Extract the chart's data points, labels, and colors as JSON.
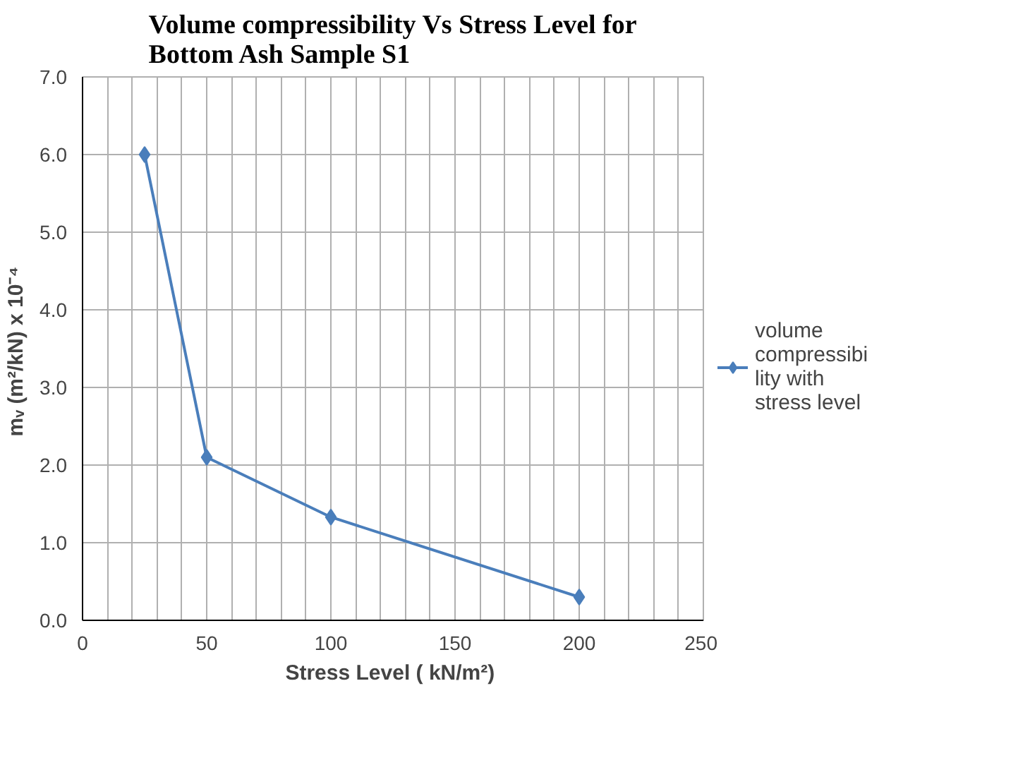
{
  "chart_data": {
    "type": "line",
    "title": "Volume compressibility Vs Stress Level for\nBottom Ash Sample S1",
    "xlabel": "Stress Level  ( kN/m²)",
    "ylabel": "mᵥ  (m²/kN) x 10⁻⁴",
    "x": [
      25,
      50,
      100,
      200
    ],
    "series": [
      {
        "name": "volume\ncompressibi\nlity with\nstress level",
        "color": "#4a7ebb",
        "values": [
          6.0,
          2.1,
          1.33,
          0.3
        ]
      }
    ],
    "xlim": [
      0,
      250
    ],
    "ylim": [
      0,
      7
    ],
    "xticks": [
      0,
      {
        "value": 10,
        "label": null
      },
      {
        "value": 20,
        "label": null
      },
      {
        "value": 30,
        "label": null
      },
      {
        "value": 40,
        "label": null
      },
      50,
      {
        "value": 60,
        "label": null
      },
      {
        "value": 70,
        "label": null
      },
      {
        "value": 80,
        "label": null
      },
      {
        "value": 90,
        "label": null
      },
      100,
      {
        "value": 110,
        "label": null
      },
      {
        "value": 120,
        "label": null
      },
      {
        "value": 130,
        "label": null
      },
      {
        "value": 140,
        "label": null
      },
      150,
      {
        "value": 160,
        "label": null
      },
      {
        "value": 170,
        "label": null
      },
      {
        "value": 180,
        "label": null
      },
      {
        "value": 190,
        "label": null
      },
      200,
      {
        "value": 210,
        "label": null
      },
      {
        "value": 220,
        "label": null
      },
      {
        "value": 230,
        "label": null
      },
      {
        "value": 240,
        "label": null
      },
      250
    ],
    "yticks": [
      {
        "value": 0,
        "label": "0.0"
      },
      {
        "value": 1,
        "label": "1.0"
      },
      {
        "value": 2,
        "label": "2.0"
      },
      {
        "value": 3,
        "label": "3.0"
      },
      {
        "value": 4,
        "label": "4.0"
      },
      {
        "value": 5,
        "label": "5.0"
      },
      {
        "value": 6,
        "label": "6.0"
      },
      {
        "value": 7,
        "label": "7.0"
      }
    ],
    "grid": true,
    "legend": "right",
    "marker": "diamond",
    "line_style": "solid"
  }
}
